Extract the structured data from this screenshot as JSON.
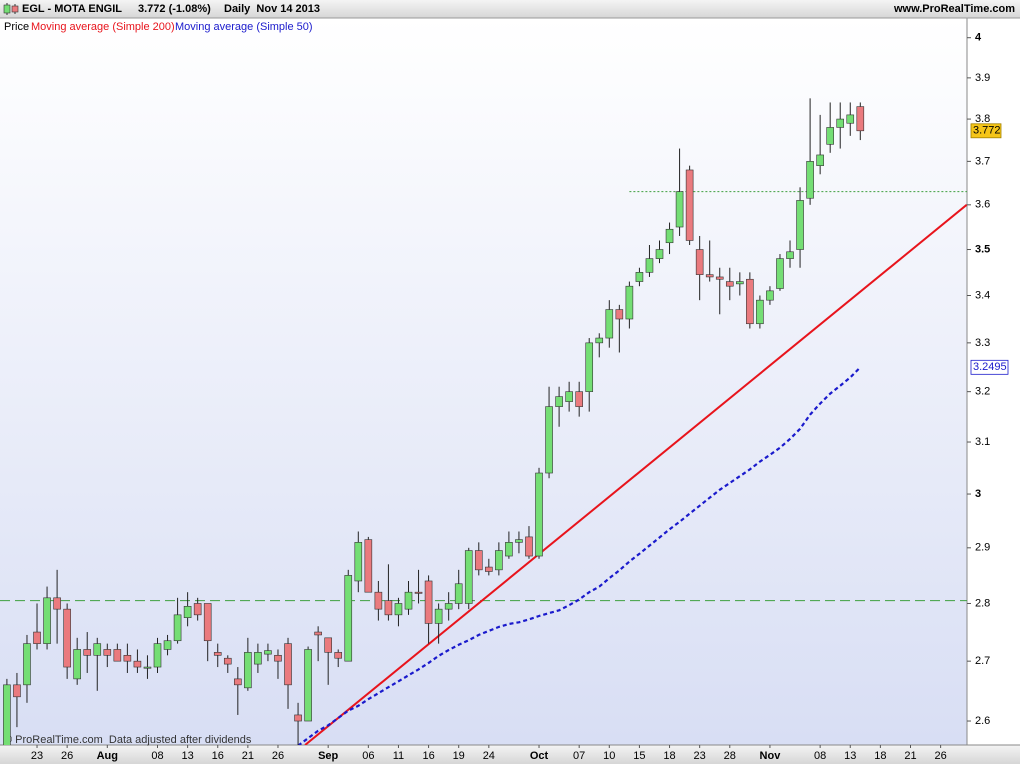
{
  "header": {
    "symbol": "EGL - MOTA ENGIL",
    "quote": "3.772 (-1.08%)",
    "period": "Daily  Nov 14 2013",
    "site": "www.ProRealTime.com"
  },
  "footer": "© ProRealTime.com  Data adjusted after dividends",
  "chart_data": {
    "type": "candlestick",
    "legend_label": "Price",
    "log": true,
    "y_axis": "right",
    "categories": [
      null,
      null,
      null,
      "23",
      null,
      null,
      "26",
      null,
      null,
      null,
      "Aug",
      null,
      null,
      null,
      null,
      "08",
      null,
      null,
      "13",
      null,
      null,
      "16",
      null,
      null,
      "21",
      null,
      null,
      "26",
      null,
      null,
      null,
      null,
      "Sep",
      null,
      null,
      null,
      "06",
      null,
      null,
      "11",
      null,
      null,
      "16",
      null,
      null,
      "19",
      null,
      null,
      "24",
      null,
      null,
      null,
      null,
      "Oct",
      null,
      null,
      null,
      "07",
      null,
      null,
      "10",
      null,
      null,
      "15",
      null,
      null,
      "18",
      null,
      null,
      "23",
      null,
      null,
      "28",
      null,
      null,
      null,
      "Nov",
      null,
      null,
      null,
      null,
      "08",
      null,
      null,
      "13",
      null,
      null,
      "18",
      null,
      null,
      "21",
      null,
      null,
      "26",
      null,
      null
    ],
    "open": [
      2.56,
      2.66,
      2.66,
      2.75,
      2.73,
      2.81,
      2.79,
      2.67,
      2.72,
      2.71,
      2.72,
      2.72,
      2.71,
      2.7,
      2.69,
      2.69,
      2.72,
      2.735,
      2.775,
      2.8,
      2.8,
      2.715,
      2.705,
      2.67,
      2.655,
      2.695,
      2.712,
      2.71,
      2.73,
      2.61,
      2.6,
      2.75,
      2.74,
      2.715,
      2.7,
      2.84,
      2.915,
      2.82,
      2.805,
      2.78,
      2.79,
      2.82,
      2.84,
      2.765,
      2.79,
      2.8,
      2.8,
      2.895,
      2.865,
      2.86,
      2.885,
      2.91,
      2.92,
      2.885,
      3.04,
      3.17,
      3.18,
      3.2,
      3.2,
      3.3,
      3.31,
      3.37,
      3.35,
      3.43,
      3.45,
      3.48,
      3.515,
      3.55,
      3.68,
      3.5,
      3.445,
      3.44,
      3.43,
      3.425,
      3.435,
      3.34,
      3.39,
      3.415,
      3.48,
      3.5,
      3.615,
      3.69,
      3.74,
      3.78,
      3.79,
      3.83,
      null,
      null,
      null,
      null,
      null,
      null,
      null,
      null,
      null,
      null
    ],
    "high": [
      2.67,
      2.68,
      2.745,
      2.8,
      2.83,
      2.86,
      2.8,
      2.74,
      2.75,
      2.74,
      2.73,
      2.73,
      2.73,
      2.72,
      2.71,
      2.74,
      2.745,
      2.81,
      2.82,
      2.81,
      2.8,
      2.73,
      2.71,
      2.69,
      2.74,
      2.73,
      2.73,
      2.72,
      2.74,
      2.63,
      2.725,
      2.76,
      2.74,
      2.72,
      2.86,
      2.93,
      2.92,
      2.84,
      2.87,
      2.81,
      2.84,
      2.86,
      2.85,
      2.8,
      2.82,
      2.86,
      2.9,
      2.91,
      2.88,
      2.91,
      2.93,
      2.93,
      2.94,
      3.05,
      3.21,
      3.21,
      3.22,
      3.22,
      3.31,
      3.32,
      3.39,
      3.38,
      3.43,
      3.46,
      3.51,
      3.52,
      3.56,
      3.73,
      3.69,
      3.53,
      3.52,
      3.46,
      3.46,
      3.45,
      3.45,
      3.4,
      3.42,
      3.49,
      3.52,
      3.64,
      3.85,
      3.81,
      3.84,
      3.84,
      3.84,
      3.84,
      null,
      null,
      null,
      null,
      null,
      null,
      null,
      null,
      null,
      null
    ],
    "low": [
      2.55,
      2.59,
      2.63,
      2.72,
      2.72,
      2.73,
      2.67,
      2.66,
      2.68,
      2.65,
      2.69,
      2.7,
      2.68,
      2.68,
      2.67,
      2.68,
      2.71,
      2.73,
      2.76,
      2.77,
      2.7,
      2.69,
      2.68,
      2.61,
      2.65,
      2.68,
      2.7,
      2.67,
      2.62,
      2.55,
      2.6,
      2.7,
      2.66,
      2.69,
      2.7,
      2.82,
      2.82,
      2.77,
      2.77,
      2.76,
      2.78,
      2.8,
      2.73,
      2.73,
      2.77,
      2.79,
      2.79,
      2.85,
      2.85,
      2.85,
      2.88,
      2.89,
      2.88,
      2.88,
      3.03,
      3.13,
      3.16,
      3.15,
      3.16,
      3.27,
      3.29,
      3.28,
      3.33,
      3.42,
      3.44,
      3.47,
      3.49,
      3.53,
      3.51,
      3.39,
      3.43,
      3.36,
      3.39,
      3.4,
      3.33,
      3.33,
      3.38,
      3.41,
      3.46,
      3.46,
      3.6,
      3.67,
      3.72,
      3.73,
      3.76,
      3.75,
      null,
      null,
      null,
      null,
      null,
      null,
      null,
      null,
      null,
      null
    ],
    "close": [
      2.66,
      2.64,
      2.73,
      2.73,
      2.81,
      2.79,
      2.69,
      2.72,
      2.71,
      2.73,
      2.71,
      2.7,
      2.7,
      2.69,
      2.69,
      2.73,
      2.735,
      2.78,
      2.795,
      2.78,
      2.735,
      2.71,
      2.695,
      2.66,
      2.715,
      2.715,
      2.718,
      2.7,
      2.66,
      2.6,
      2.72,
      2.745,
      2.715,
      2.705,
      2.85,
      2.91,
      2.82,
      2.79,
      2.78,
      2.8,
      2.82,
      2.818,
      2.765,
      2.79,
      2.8,
      2.835,
      2.895,
      2.86,
      2.857,
      2.895,
      2.91,
      2.915,
      2.885,
      3.04,
      3.17,
      3.19,
      3.2,
      3.17,
      3.3,
      3.31,
      3.37,
      3.35,
      3.42,
      3.45,
      3.48,
      3.5,
      3.545,
      3.63,
      3.52,
      3.445,
      3.44,
      3.435,
      3.42,
      3.43,
      3.34,
      3.39,
      3.41,
      3.48,
      3.495,
      3.61,
      3.7,
      3.715,
      3.78,
      3.8,
      3.81,
      3.772,
      null,
      null,
      null,
      null,
      null,
      null,
      null,
      null,
      null,
      null
    ],
    "up_color": "#74de74",
    "down_color": "#ea7a7e",
    "series": [
      {
        "name": "Moving average (Simple 50)",
        "color": "#1a1acc",
        "style": "dashed",
        "values": [
          null,
          null,
          null,
          null,
          null,
          null,
          null,
          null,
          null,
          null,
          null,
          null,
          null,
          null,
          null,
          null,
          null,
          null,
          null,
          null,
          null,
          null,
          null,
          null,
          null,
          null,
          null,
          null,
          null,
          2.56,
          2.572,
          2.584,
          2.593,
          2.605,
          2.617,
          2.625,
          2.636,
          2.646,
          2.656,
          2.666,
          2.676,
          2.686,
          2.697,
          2.709,
          2.719,
          2.728,
          2.736,
          2.745,
          2.752,
          2.759,
          2.764,
          2.767,
          2.772,
          2.778,
          2.783,
          2.788,
          2.797,
          2.807,
          2.82,
          2.83,
          2.845,
          2.859,
          2.875,
          2.889,
          2.904,
          2.919,
          2.934,
          2.948,
          2.963,
          2.978,
          2.993,
          3.008,
          3.021,
          3.034,
          3.047,
          3.062,
          3.075,
          3.089,
          3.106,
          3.126,
          3.154,
          3.176,
          3.196,
          3.212,
          3.229,
          3.2495,
          null,
          null,
          null,
          null,
          null,
          null,
          null,
          null,
          null,
          null
        ]
      }
    ],
    "trendline": {
      "name": "Moving average (Simple 200)",
      "color": "#e8141c",
      "points": [
        [
          29.7,
          2.561
        ],
        [
          95.6,
          3.6
        ]
      ]
    },
    "hlines": [
      {
        "value": 2.805,
        "color": "#3f9f3f",
        "style": "dashed"
      },
      {
        "value": 3.63,
        "color": "#3f9f3f",
        "style": "dotted",
        "from": 62
      }
    ],
    "ylim": [
      2.561,
      4.05
    ],
    "yticks": [
      2.6,
      2.7,
      2.8,
      2.9,
      3,
      3.1,
      3.2,
      3.3,
      3.4,
      3.5,
      3.6,
      3.7,
      3.8,
      3.9,
      4
    ]
  }
}
